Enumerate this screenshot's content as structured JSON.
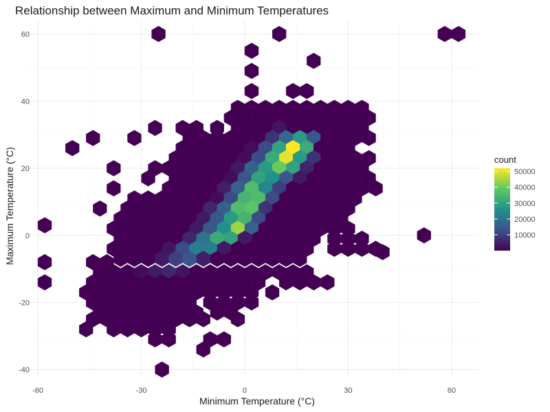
{
  "chart_data": {
    "type": "heatmap",
    "subtype": "hexbin",
    "title": "Relationship between Maximum and Minimum Temperatures",
    "xlabel": "Minimum Temperature (°C)",
    "ylabel": "Maximum Temperature (°C)",
    "xlim": [
      -63,
      68
    ],
    "ylim": [
      -42,
      64
    ],
    "x_ticks": [
      -60,
      -30,
      0,
      30,
      60
    ],
    "x_tick_labels": [
      "-60",
      "-30",
      "0",
      "30",
      "60"
    ],
    "y_ticks": [
      -40,
      -20,
      0,
      20,
      40,
      60
    ],
    "y_tick_labels": [
      "-40",
      "-20",
      "0",
      "20",
      "40",
      "60"
    ],
    "grid": true,
    "legend": {
      "title": "count",
      "position": "right",
      "ticks": [
        10000,
        20000,
        30000,
        40000,
        50000
      ],
      "tick_labels": [
        "10000",
        "20000",
        "30000",
        "40000",
        "50000"
      ],
      "min": 1,
      "max": 52000
    },
    "colormap": [
      "#440154",
      "#3b528b",
      "#21918c",
      "#5ec962",
      "#fde725"
    ],
    "bins": [
      [
        -25,
        60,
        1
      ],
      [
        10,
        60,
        1
      ],
      [
        58,
        60,
        1
      ],
      [
        62,
        60,
        1
      ],
      [
        2,
        55,
        1
      ],
      [
        20,
        52,
        1
      ],
      [
        2,
        49,
        1
      ],
      [
        2,
        43,
        1
      ],
      [
        14,
        43,
        1
      ],
      [
        18,
        43,
        1
      ],
      [
        -2,
        38,
        1
      ],
      [
        2,
        38,
        1
      ],
      [
        6,
        38,
        1
      ],
      [
        10,
        38,
        1
      ],
      [
        14,
        38,
        1
      ],
      [
        18,
        38,
        1
      ],
      [
        22,
        38,
        1
      ],
      [
        26,
        38,
        1
      ],
      [
        30,
        38,
        1
      ],
      [
        34,
        38,
        1
      ],
      [
        -4,
        35,
        1
      ],
      [
        0,
        35,
        1
      ],
      [
        4,
        35,
        1
      ],
      [
        8,
        35,
        1
      ],
      [
        12,
        35,
        1
      ],
      [
        16,
        35,
        1
      ],
      [
        20,
        35,
        1
      ],
      [
        24,
        35,
        1
      ],
      [
        28,
        35,
        1
      ],
      [
        32,
        35,
        1
      ],
      [
        36,
        35,
        1
      ],
      [
        -18,
        32,
        1
      ],
      [
        -14,
        32,
        1
      ],
      [
        -8,
        32,
        1
      ],
      [
        -2,
        32,
        1
      ],
      [
        2,
        32,
        1
      ],
      [
        6,
        32,
        1
      ],
      [
        10,
        32,
        3000
      ],
      [
        14,
        32,
        1
      ],
      [
        18,
        32,
        1
      ],
      [
        22,
        32,
        1
      ],
      [
        26,
        32,
        1
      ],
      [
        30,
        32,
        1
      ],
      [
        34,
        32,
        1
      ],
      [
        -26,
        32,
        1
      ],
      [
        -44,
        29,
        1
      ],
      [
        -32,
        29,
        1
      ],
      [
        -16,
        29,
        1
      ],
      [
        -12,
        29,
        1
      ],
      [
        -8,
        29,
        1
      ],
      [
        -4,
        29,
        1
      ],
      [
        0,
        29,
        1
      ],
      [
        4,
        29,
        1
      ],
      [
        8,
        29,
        8000
      ],
      [
        12,
        29,
        18000
      ],
      [
        16,
        29,
        28000
      ],
      [
        20,
        29,
        14000
      ],
      [
        24,
        29,
        1
      ],
      [
        28,
        29,
        1
      ],
      [
        32,
        29,
        1
      ],
      [
        36,
        29,
        1
      ],
      [
        -50,
        26,
        1
      ],
      [
        -18,
        26,
        1
      ],
      [
        -14,
        26,
        1
      ],
      [
        -10,
        26,
        1
      ],
      [
        -6,
        26,
        1
      ],
      [
        -2,
        26,
        1
      ],
      [
        2,
        26,
        2000
      ],
      [
        6,
        26,
        12000
      ],
      [
        10,
        26,
        30000
      ],
      [
        14,
        26,
        52000
      ],
      [
        18,
        26,
        32000
      ],
      [
        22,
        26,
        1
      ],
      [
        26,
        26,
        1
      ],
      [
        30,
        26,
        1
      ],
      [
        -20,
        23,
        1
      ],
      [
        -16,
        23,
        1
      ],
      [
        -12,
        23,
        1
      ],
      [
        -8,
        23,
        1
      ],
      [
        -4,
        23,
        1
      ],
      [
        0,
        23,
        2000
      ],
      [
        4,
        23,
        12000
      ],
      [
        8,
        23,
        32000
      ],
      [
        12,
        23,
        50000
      ],
      [
        16,
        23,
        28000
      ],
      [
        20,
        23,
        8000
      ],
      [
        24,
        23,
        1
      ],
      [
        28,
        23,
        1
      ],
      [
        32,
        23,
        1
      ],
      [
        36,
        23,
        1
      ],
      [
        -38,
        20,
        1
      ],
      [
        -26,
        20,
        1
      ],
      [
        -22,
        20,
        1
      ],
      [
        -18,
        20,
        1
      ],
      [
        -14,
        20,
        1
      ],
      [
        -10,
        20,
        1
      ],
      [
        -6,
        20,
        1
      ],
      [
        -2,
        20,
        4000
      ],
      [
        2,
        20,
        16000
      ],
      [
        6,
        20,
        28000
      ],
      [
        10,
        20,
        40000
      ],
      [
        14,
        20,
        30000
      ],
      [
        18,
        20,
        6000
      ],
      [
        22,
        20,
        1
      ],
      [
        26,
        20,
        1
      ],
      [
        30,
        20,
        1
      ],
      [
        34,
        20,
        1
      ],
      [
        -28,
        17,
        1
      ],
      [
        -20,
        17,
        1
      ],
      [
        -16,
        17,
        1
      ],
      [
        -12,
        17,
        1
      ],
      [
        -8,
        17,
        1
      ],
      [
        -4,
        17,
        2000
      ],
      [
        0,
        17,
        14000
      ],
      [
        4,
        17,
        30000
      ],
      [
        8,
        17,
        26000
      ],
      [
        12,
        17,
        14000
      ],
      [
        16,
        17,
        4000
      ],
      [
        20,
        17,
        1
      ],
      [
        24,
        17,
        1
      ],
      [
        28,
        17,
        1
      ],
      [
        32,
        17,
        1
      ],
      [
        36,
        17,
        1
      ],
      [
        -38,
        14,
        1
      ],
      [
        -22,
        14,
        1
      ],
      [
        -18,
        14,
        1
      ],
      [
        -14,
        14,
        1
      ],
      [
        -10,
        14,
        1
      ],
      [
        -6,
        14,
        5000
      ],
      [
        -2,
        14,
        16000
      ],
      [
        2,
        14,
        36000
      ],
      [
        6,
        14,
        24000
      ],
      [
        10,
        14,
        10000
      ],
      [
        14,
        14,
        1
      ],
      [
        18,
        14,
        1
      ],
      [
        22,
        14,
        1
      ],
      [
        26,
        14,
        1
      ],
      [
        30,
        14,
        1
      ],
      [
        34,
        14,
        1
      ],
      [
        38,
        14,
        1
      ],
      [
        -32,
        11,
        1
      ],
      [
        -28,
        11,
        1
      ],
      [
        -24,
        11,
        1
      ],
      [
        -20,
        11,
        1
      ],
      [
        -16,
        11,
        1
      ],
      [
        -12,
        11,
        1
      ],
      [
        -8,
        11,
        2000
      ],
      [
        -4,
        11,
        12000
      ],
      [
        0,
        11,
        34000
      ],
      [
        4,
        11,
        36000
      ],
      [
        8,
        11,
        12000
      ],
      [
        12,
        11,
        1
      ],
      [
        16,
        11,
        1
      ],
      [
        20,
        11,
        1
      ],
      [
        24,
        11,
        1
      ],
      [
        28,
        11,
        1
      ],
      [
        32,
        11,
        1
      ],
      [
        -42,
        8,
        1
      ],
      [
        -34,
        8,
        1
      ],
      [
        -30,
        8,
        1
      ],
      [
        -26,
        8,
        1
      ],
      [
        -22,
        8,
        1
      ],
      [
        -18,
        8,
        1
      ],
      [
        -14,
        8,
        1
      ],
      [
        -10,
        8,
        6000
      ],
      [
        -6,
        8,
        16000
      ],
      [
        -2,
        8,
        36000
      ],
      [
        2,
        8,
        38000
      ],
      [
        6,
        8,
        8000
      ],
      [
        10,
        8,
        1
      ],
      [
        14,
        8,
        1
      ],
      [
        18,
        8,
        1
      ],
      [
        22,
        8,
        1
      ],
      [
        26,
        8,
        1
      ],
      [
        30,
        8,
        1
      ],
      [
        -36,
        5,
        1
      ],
      [
        -32,
        5,
        1
      ],
      [
        -28,
        5,
        1
      ],
      [
        -24,
        5,
        1
      ],
      [
        -20,
        5,
        1
      ],
      [
        -16,
        5,
        1
      ],
      [
        -12,
        5,
        4000
      ],
      [
        -8,
        5,
        14000
      ],
      [
        -4,
        5,
        28000
      ],
      [
        0,
        5,
        34000
      ],
      [
        4,
        5,
        12000
      ],
      [
        8,
        5,
        1
      ],
      [
        12,
        5,
        1
      ],
      [
        16,
        5,
        1
      ],
      [
        20,
        5,
        1
      ],
      [
        24,
        5,
        1
      ],
      [
        28,
        5,
        1
      ],
      [
        -38,
        2,
        1
      ],
      [
        -34,
        2,
        1
      ],
      [
        -30,
        2,
        1
      ],
      [
        -26,
        2,
        1
      ],
      [
        -22,
        2,
        1
      ],
      [
        -18,
        2,
        1
      ],
      [
        -14,
        2,
        4000
      ],
      [
        -10,
        2,
        14000
      ],
      [
        -6,
        2,
        26000
      ],
      [
        -2,
        2,
        44000
      ],
      [
        2,
        2,
        16000
      ],
      [
        6,
        2,
        1
      ],
      [
        10,
        2,
        1
      ],
      [
        14,
        2,
        1
      ],
      [
        18,
        2,
        1
      ],
      [
        22,
        2,
        1
      ],
      [
        26,
        2,
        1
      ],
      [
        30,
        2,
        1
      ],
      [
        -58,
        3,
        1
      ],
      [
        52,
        0,
        1
      ],
      [
        -36,
        -1,
        1
      ],
      [
        -32,
        -1,
        1
      ],
      [
        -28,
        -1,
        1
      ],
      [
        -24,
        -1,
        1
      ],
      [
        -20,
        -1,
        1
      ],
      [
        -16,
        -1,
        6000
      ],
      [
        -12,
        -1,
        20000
      ],
      [
        -8,
        -1,
        32000
      ],
      [
        -4,
        -1,
        30000
      ],
      [
        0,
        -1,
        4000
      ],
      [
        4,
        -1,
        1
      ],
      [
        8,
        -1,
        1
      ],
      [
        12,
        -1,
        1
      ],
      [
        16,
        -1,
        1
      ],
      [
        20,
        -1,
        1
      ],
      [
        26,
        -1,
        1
      ],
      [
        30,
        -1,
        1
      ],
      [
        34,
        -1,
        1
      ],
      [
        -38,
        -4,
        1
      ],
      [
        -34,
        -4,
        1
      ],
      [
        -30,
        -4,
        1
      ],
      [
        -26,
        -4,
        1
      ],
      [
        -22,
        -4,
        3000
      ],
      [
        -18,
        -4,
        12000
      ],
      [
        -14,
        -4,
        22000
      ],
      [
        -10,
        -4,
        22000
      ],
      [
        -6,
        -4,
        4000
      ],
      [
        -2,
        -4,
        1
      ],
      [
        2,
        -4,
        1
      ],
      [
        6,
        -4,
        1
      ],
      [
        10,
        -4,
        1
      ],
      [
        14,
        -4,
        1
      ],
      [
        18,
        -4,
        1
      ],
      [
        26,
        -4,
        1
      ],
      [
        30,
        -4,
        1
      ],
      [
        34,
        -4,
        1
      ],
      [
        38,
        -4,
        1
      ],
      [
        -36,
        -7,
        1
      ],
      [
        -32,
        -7,
        1
      ],
      [
        -28,
        -7,
        1
      ],
      [
        -24,
        -7,
        4000
      ],
      [
        -20,
        -7,
        10000
      ],
      [
        -16,
        -7,
        14000
      ],
      [
        -12,
        -7,
        5000
      ],
      [
        -8,
        -7,
        1
      ],
      [
        -4,
        -7,
        1
      ],
      [
        0,
        -7,
        1
      ],
      [
        4,
        -7,
        1
      ],
      [
        8,
        -7,
        1
      ],
      [
        12,
        -7,
        1
      ],
      [
        16,
        -7,
        1
      ],
      [
        40,
        -5,
        1
      ],
      [
        -58,
        -8,
        1
      ],
      [
        -44,
        -8,
        1
      ],
      [
        -40,
        -8,
        1
      ],
      [
        -42,
        -11,
        1
      ],
      [
        -38,
        -11,
        1
      ],
      [
        -34,
        -11,
        1
      ],
      [
        -30,
        -11,
        2000
      ],
      [
        -26,
        -11,
        4000
      ],
      [
        -22,
        -11,
        6000
      ],
      [
        -18,
        -11,
        3000
      ],
      [
        -14,
        -11,
        1
      ],
      [
        -10,
        -11,
        1
      ],
      [
        -6,
        -11,
        1
      ],
      [
        -2,
        -11,
        1
      ],
      [
        2,
        -11,
        1
      ],
      [
        6,
        -11,
        1
      ],
      [
        10,
        -11,
        1
      ],
      [
        14,
        -11,
        1
      ],
      [
        18,
        -11,
        1
      ],
      [
        -58,
        -14,
        1
      ],
      [
        -44,
        -14,
        1
      ],
      [
        -40,
        -14,
        1
      ],
      [
        -36,
        -14,
        1
      ],
      [
        -32,
        -14,
        1
      ],
      [
        -28,
        -14,
        1
      ],
      [
        -24,
        -14,
        1
      ],
      [
        -20,
        -14,
        1
      ],
      [
        -16,
        -14,
        1
      ],
      [
        -12,
        -14,
        1
      ],
      [
        -8,
        -14,
        1
      ],
      [
        -4,
        -14,
        1
      ],
      [
        0,
        -14,
        1
      ],
      [
        4,
        -14,
        1
      ],
      [
        12,
        -14,
        1
      ],
      [
        16,
        -14,
        1
      ],
      [
        20,
        -14,
        1
      ],
      [
        24,
        -14,
        1
      ],
      [
        -46,
        -17,
        1
      ],
      [
        -42,
        -17,
        1
      ],
      [
        -38,
        -17,
        1
      ],
      [
        -34,
        -17,
        1
      ],
      [
        -30,
        -17,
        1
      ],
      [
        -26,
        -17,
        1
      ],
      [
        -22,
        -17,
        1
      ],
      [
        -18,
        -17,
        1
      ],
      [
        -14,
        -17,
        1
      ],
      [
        -10,
        -17,
        1
      ],
      [
        -6,
        -17,
        1
      ],
      [
        -2,
        -17,
        1
      ],
      [
        2,
        -17,
        1
      ],
      [
        8,
        -17,
        1
      ],
      [
        -44,
        -20,
        1
      ],
      [
        -40,
        -20,
        1
      ],
      [
        -36,
        -20,
        1
      ],
      [
        -32,
        -20,
        1
      ],
      [
        -28,
        -20,
        1
      ],
      [
        -24,
        -20,
        1
      ],
      [
        -20,
        -20,
        1
      ],
      [
        -16,
        -20,
        1
      ],
      [
        -10,
        -20,
        1
      ],
      [
        -6,
        -20,
        1
      ],
      [
        -2,
        -20,
        1
      ],
      [
        2,
        -20,
        1
      ],
      [
        -42,
        -23,
        1
      ],
      [
        -38,
        -23,
        1
      ],
      [
        -34,
        -23,
        1
      ],
      [
        -30,
        -23,
        1
      ],
      [
        -26,
        -23,
        1
      ],
      [
        -22,
        -23,
        1
      ],
      [
        -18,
        -23,
        1
      ],
      [
        -14,
        -23,
        1
      ],
      [
        -8,
        -23,
        1
      ],
      [
        -4,
        -23,
        1
      ],
      [
        -44,
        -25,
        1
      ],
      [
        -40,
        -25,
        1
      ],
      [
        -36,
        -25,
        1
      ],
      [
        -32,
        -25,
        1
      ],
      [
        -28,
        -25,
        1
      ],
      [
        -24,
        -25,
        1
      ],
      [
        -20,
        -25,
        1
      ],
      [
        -16,
        -25,
        1
      ],
      [
        -12,
        -25,
        1
      ],
      [
        -2,
        -25,
        1
      ],
      [
        -46,
        -28,
        1
      ],
      [
        -38,
        -28,
        1
      ],
      [
        -34,
        -28,
        1
      ],
      [
        -30,
        -28,
        1
      ],
      [
        -26,
        -28,
        1
      ],
      [
        -22,
        -28,
        1
      ],
      [
        -26,
        -31,
        1
      ],
      [
        -22,
        -31,
        1
      ],
      [
        -10,
        -31,
        1
      ],
      [
        -6,
        -31,
        1
      ],
      [
        -12,
        -34,
        1
      ],
      [
        -24,
        -40,
        1
      ]
    ]
  }
}
